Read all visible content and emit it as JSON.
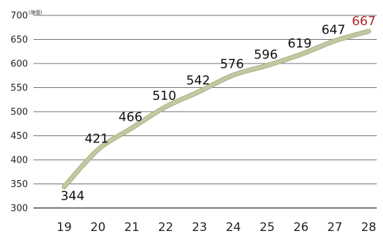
{
  "chart_data": {
    "type": "line",
    "x": [
      "19",
      "20",
      "21",
      "22",
      "23",
      "24",
      "25",
      "26",
      "27",
      "28"
    ],
    "series": [
      {
        "values": [
          344,
          421,
          466,
          510,
          542,
          576,
          596,
          619,
          647,
          667
        ]
      }
    ],
    "data_labels": [
      "344",
      "421",
      "466",
      "510",
      "542",
      "576",
      "596",
      "619",
      "647",
      "667"
    ],
    "y_ticks": [
      "300",
      "350",
      "400",
      "450",
      "500",
      "550",
      "600",
      "650",
      "700"
    ],
    "ylim": [
      300,
      700
    ],
    "y_unit_label": "(億個)",
    "grid": true,
    "colors": {
      "line": "#c2c9a0",
      "line_outline": "#a8ae86",
      "label": "#111111",
      "highlight_label": "#b02a2a"
    }
  }
}
